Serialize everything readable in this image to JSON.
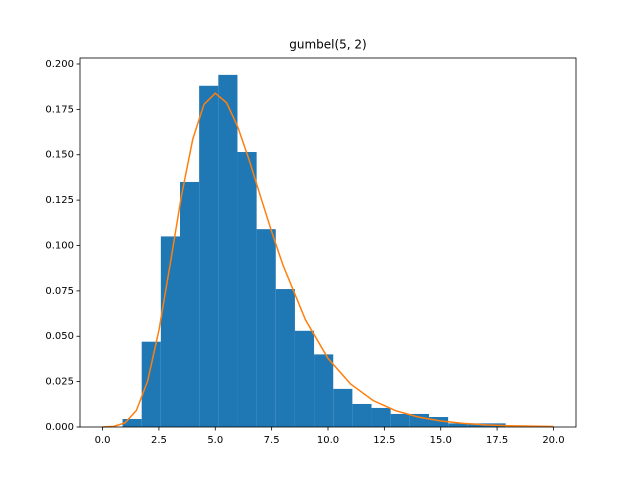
{
  "chart_data": {
    "type": "histogram",
    "title": "gumbel(5, 2)",
    "bins": [
      0.887,
      1.737,
      2.586,
      3.436,
      4.285,
      5.135,
      5.984,
      6.834,
      7.683,
      8.533,
      9.382,
      10.232,
      11.081,
      11.931,
      12.78,
      13.63,
      14.479,
      15.329,
      16.178,
      17.028,
      17.877
    ],
    "values": [
      0.0044,
      0.047,
      0.105,
      0.135,
      0.188,
      0.194,
      0.1515,
      0.109,
      0.076,
      0.053,
      0.04,
      0.021,
      0.0127,
      0.0105,
      0.0072,
      0.0072,
      0.0055,
      0.002,
      0.002,
      0.002
    ],
    "color": "#1f77b4",
    "curve": {
      "type": "line",
      "color": "#ff7f0e",
      "x": [
        0,
        0.5,
        1,
        1.5,
        2,
        2.5,
        3,
        3.5,
        4,
        4.5,
        5,
        5.5,
        6,
        6.5,
        7,
        7.5,
        8,
        9,
        10,
        11,
        12,
        13,
        14,
        15,
        16,
        17,
        18,
        19,
        20
      ],
      "values": [
        3e-05,
        0.00036,
        0.0023,
        0.0091,
        0.0253,
        0.0532,
        0.0897,
        0.1274,
        0.1585,
        0.1778,
        0.1839,
        0.1787,
        0.1653,
        0.1472,
        0.1273,
        0.1076,
        0.0893,
        0.0591,
        0.0378,
        0.0237,
        0.0146,
        0.009,
        0.0055,
        0.0033,
        0.002,
        0.0012,
        0.0007,
        0.00046,
        0.00028
      ]
    },
    "xlim": [
      -1,
      21
    ],
    "ylim": [
      0,
      0.2033
    ],
    "xticks": [
      {
        "value": 0,
        "label": "0.0"
      },
      {
        "value": 2.5,
        "label": "2.5"
      },
      {
        "value": 5,
        "label": "5.0"
      },
      {
        "value": 7.5,
        "label": "7.5"
      },
      {
        "value": 10,
        "label": "10.0"
      },
      {
        "value": 12.5,
        "label": "12.5"
      },
      {
        "value": 15,
        "label": "15.0"
      },
      {
        "value": 17.5,
        "label": "17.5"
      },
      {
        "value": 20,
        "label": "20.0"
      }
    ],
    "yticks": [
      {
        "value": 0,
        "label": "0.000"
      },
      {
        "value": 0.025,
        "label": "0.025"
      },
      {
        "value": 0.05,
        "label": "0.050"
      },
      {
        "value": 0.075,
        "label": "0.075"
      },
      {
        "value": 0.1,
        "label": "0.100"
      },
      {
        "value": 0.125,
        "label": "0.125"
      },
      {
        "value": 0.15,
        "label": "0.150"
      },
      {
        "value": 0.175,
        "label": "0.175"
      },
      {
        "value": 0.2,
        "label": "0.200"
      }
    ],
    "grid": false
  }
}
